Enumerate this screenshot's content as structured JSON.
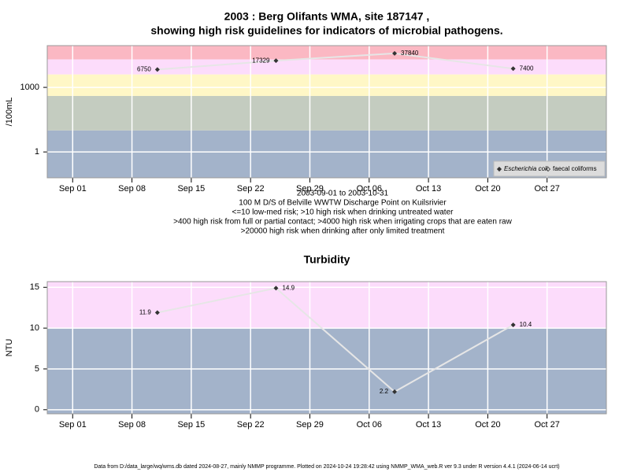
{
  "chart_data": [
    {
      "type": "line",
      "title": "2003 : Berg Olifants WMA, site 187147 ,",
      "subtitle": "showing high risk guidelines for indicators of microbial pathogens.",
      "y_label": "/100mL",
      "log_y": true,
      "grid": true,
      "legend": "bottom-right",
      "x": [
        "2003-09-11",
        "2003-09-25",
        "2003-10-09",
        "2003-10-23"
      ],
      "series": [
        {
          "name": "Escherichia coli",
          "color": "#333333",
          "values": [
            6750,
            17329,
            37840,
            7400
          ]
        },
        {
          "name": "faecal coliforms",
          "color": "#333333",
          "values": [
            null,
            null,
            null,
            null
          ]
        }
      ],
      "line_color": "#e6e6e6",
      "xlim": [
        "2003-08-29",
        "2003-11-03"
      ],
      "xticks": [
        {
          "value": "2003-09-01",
          "label": "Sep 01"
        },
        {
          "value": "2003-09-08",
          "label": "Sep 08"
        },
        {
          "value": "2003-09-15",
          "label": "Sep 15"
        },
        {
          "value": "2003-09-22",
          "label": "Sep 22"
        },
        {
          "value": "2003-09-29",
          "label": "Sep 29"
        },
        {
          "value": "2003-10-06",
          "label": "Oct 06"
        },
        {
          "value": "2003-10-13",
          "label": "Oct 13"
        },
        {
          "value": "2003-10-20",
          "label": "Oct 20"
        },
        {
          "value": "2003-10-27",
          "label": "Oct 27"
        }
      ],
      "ylim": [
        0.063,
        87000
      ],
      "yticks": [
        1,
        1000
      ],
      "bands": [
        {
          "from": 0.063,
          "to": 10,
          "color": "#a3b3ca"
        },
        {
          "from": 10,
          "to": 400,
          "color": "#c4ccc0"
        },
        {
          "from": 400,
          "to": 4000,
          "color": "#fff7c6"
        },
        {
          "from": 4000,
          "to": 20000,
          "color": "#fcdcfb"
        },
        {
          "from": 20000,
          "to": 87000,
          "color": "#fbb8c3"
        }
      ],
      "notes": [
        "2003-09-01 to 2003-10-31",
        "100 M D/S of Belville WWTW Discharge Point on Kuilsrivier",
        "<=10 low-med risk; >10 high risk when drinking untreated water",
        ">400 high risk from full or partial contact; >4000 high risk when irrigating crops that are eaten raw",
        ">20000 high risk when drinking after only limited treatment"
      ]
    },
    {
      "type": "line",
      "title": "Turbidity",
      "y_label": "NTU",
      "log_y": false,
      "grid": true,
      "x": [
        "2003-09-11",
        "2003-09-25",
        "2003-10-09",
        "2003-10-23"
      ],
      "values": [
        11.9,
        14.9,
        2.2,
        10.4
      ],
      "color": "#333333",
      "line_color": "#e6e6e6",
      "xlim": [
        "2003-08-29",
        "2003-11-03"
      ],
      "xticks": [
        {
          "value": "2003-09-01",
          "label": "Sep 01"
        },
        {
          "value": "2003-09-08",
          "label": "Sep 08"
        },
        {
          "value": "2003-09-15",
          "label": "Sep 15"
        },
        {
          "value": "2003-09-22",
          "label": "Sep 22"
        },
        {
          "value": "2003-09-29",
          "label": "Sep 29"
        },
        {
          "value": "2003-10-06",
          "label": "Oct 06"
        },
        {
          "value": "2003-10-13",
          "label": "Oct 13"
        },
        {
          "value": "2003-10-20",
          "label": "Oct 20"
        },
        {
          "value": "2003-10-27",
          "label": "Oct 27"
        }
      ],
      "ylim": [
        -0.5,
        15.7
      ],
      "yticks": [
        0,
        5,
        10,
        15
      ],
      "bands": [
        {
          "from": -0.5,
          "to": 10,
          "color": "#a3b3ca"
        },
        {
          "from": 10,
          "to": 15.7,
          "color": "#fcdcfb"
        }
      ]
    }
  ],
  "footer": "Data from D:/data_large/wq/wms.db dated 2024-08-27, mainly NMMP programme. Plotted on 2024-10-24 19:28:42 using NMMP_WMA_web.R ver 9.3 under R version 4.4.1 (2024-06-14 ucrt)"
}
